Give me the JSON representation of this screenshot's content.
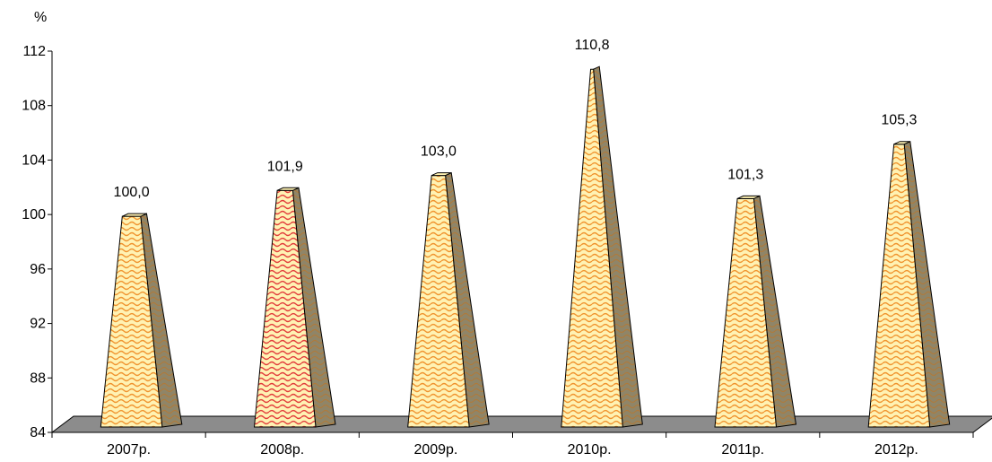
{
  "chart_data": {
    "type": "bar",
    "y_unit_label": "%",
    "categories": [
      "2007р.",
      "2008р.",
      "2009р.",
      "2010р.",
      "2011р.",
      "2012р."
    ],
    "values": [
      100.0,
      101.9,
      103.0,
      110.8,
      101.3,
      105.3
    ],
    "data_labels": [
      "100,0",
      "101,9",
      "103,0",
      "110,8",
      "101,3",
      "105,3"
    ],
    "y_ticks": [
      "84",
      "88",
      "92",
      "96",
      "100",
      "104",
      "108",
      "112"
    ],
    "ylim": [
      84,
      112
    ],
    "grid": false,
    "legend": "none",
    "colors": {
      "bar_face": "#fff2b3",
      "pattern_default": "#f0932e",
      "pattern_highlight": "#e23b3b",
      "bar_side": "#8f8568",
      "floor": "#8c8c8c",
      "axis": "#000000"
    },
    "highlight_index": 1
  }
}
